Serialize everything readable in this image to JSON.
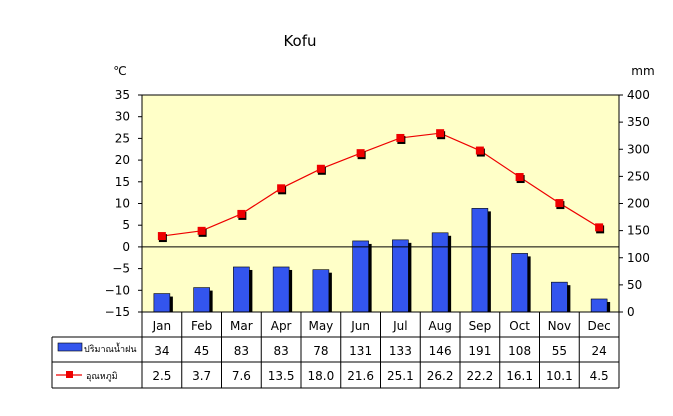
{
  "chart_data": {
    "type": "bar+line",
    "title": "Kofu",
    "y_left_unit": "℃",
    "y_right_unit": "mm",
    "y_left_range": [
      -15,
      35
    ],
    "y_left_ticks": [
      "35",
      "30",
      "25",
      "20",
      "15",
      "10",
      "5",
      "0",
      "−5",
      "−10",
      "−15"
    ],
    "y_right_range": [
      0,
      400
    ],
    "y_right_ticks": [
      "400",
      "350",
      "300",
      "250",
      "200",
      "150",
      "100",
      "50",
      "0"
    ],
    "categories": [
      "Jan",
      "Feb",
      "Mar",
      "Apr",
      "May",
      "Jun",
      "Jul",
      "Aug",
      "Sep",
      "Oct",
      "Nov",
      "Dec"
    ],
    "series": [
      {
        "name": "ปริมาณน้ำฝน",
        "kind": "bar",
        "axis": "right",
        "color": "#3355ee",
        "values": [
          34,
          45,
          83,
          83,
          78,
          131,
          133,
          146,
          191,
          108,
          55,
          24
        ],
        "labels": [
          "34",
          "45",
          "83",
          "83",
          "78",
          "131",
          "133",
          "146",
          "191",
          "108",
          "55",
          "24"
        ]
      },
      {
        "name": "อุณหภูมิ",
        "kind": "line",
        "axis": "left",
        "color": "#ee0000",
        "values": [
          2.5,
          3.7,
          7.6,
          13.5,
          18.0,
          21.6,
          25.1,
          26.2,
          22.2,
          16.1,
          10.1,
          4.5
        ],
        "labels": [
          "2.5",
          "3.7",
          "7.6",
          "13.5",
          "18.0",
          "21.6",
          "25.1",
          "26.2",
          "22.2",
          "16.1",
          "10.1",
          "4.5"
        ]
      }
    ],
    "plot_background": "#ffffc8",
    "grid": false
  }
}
